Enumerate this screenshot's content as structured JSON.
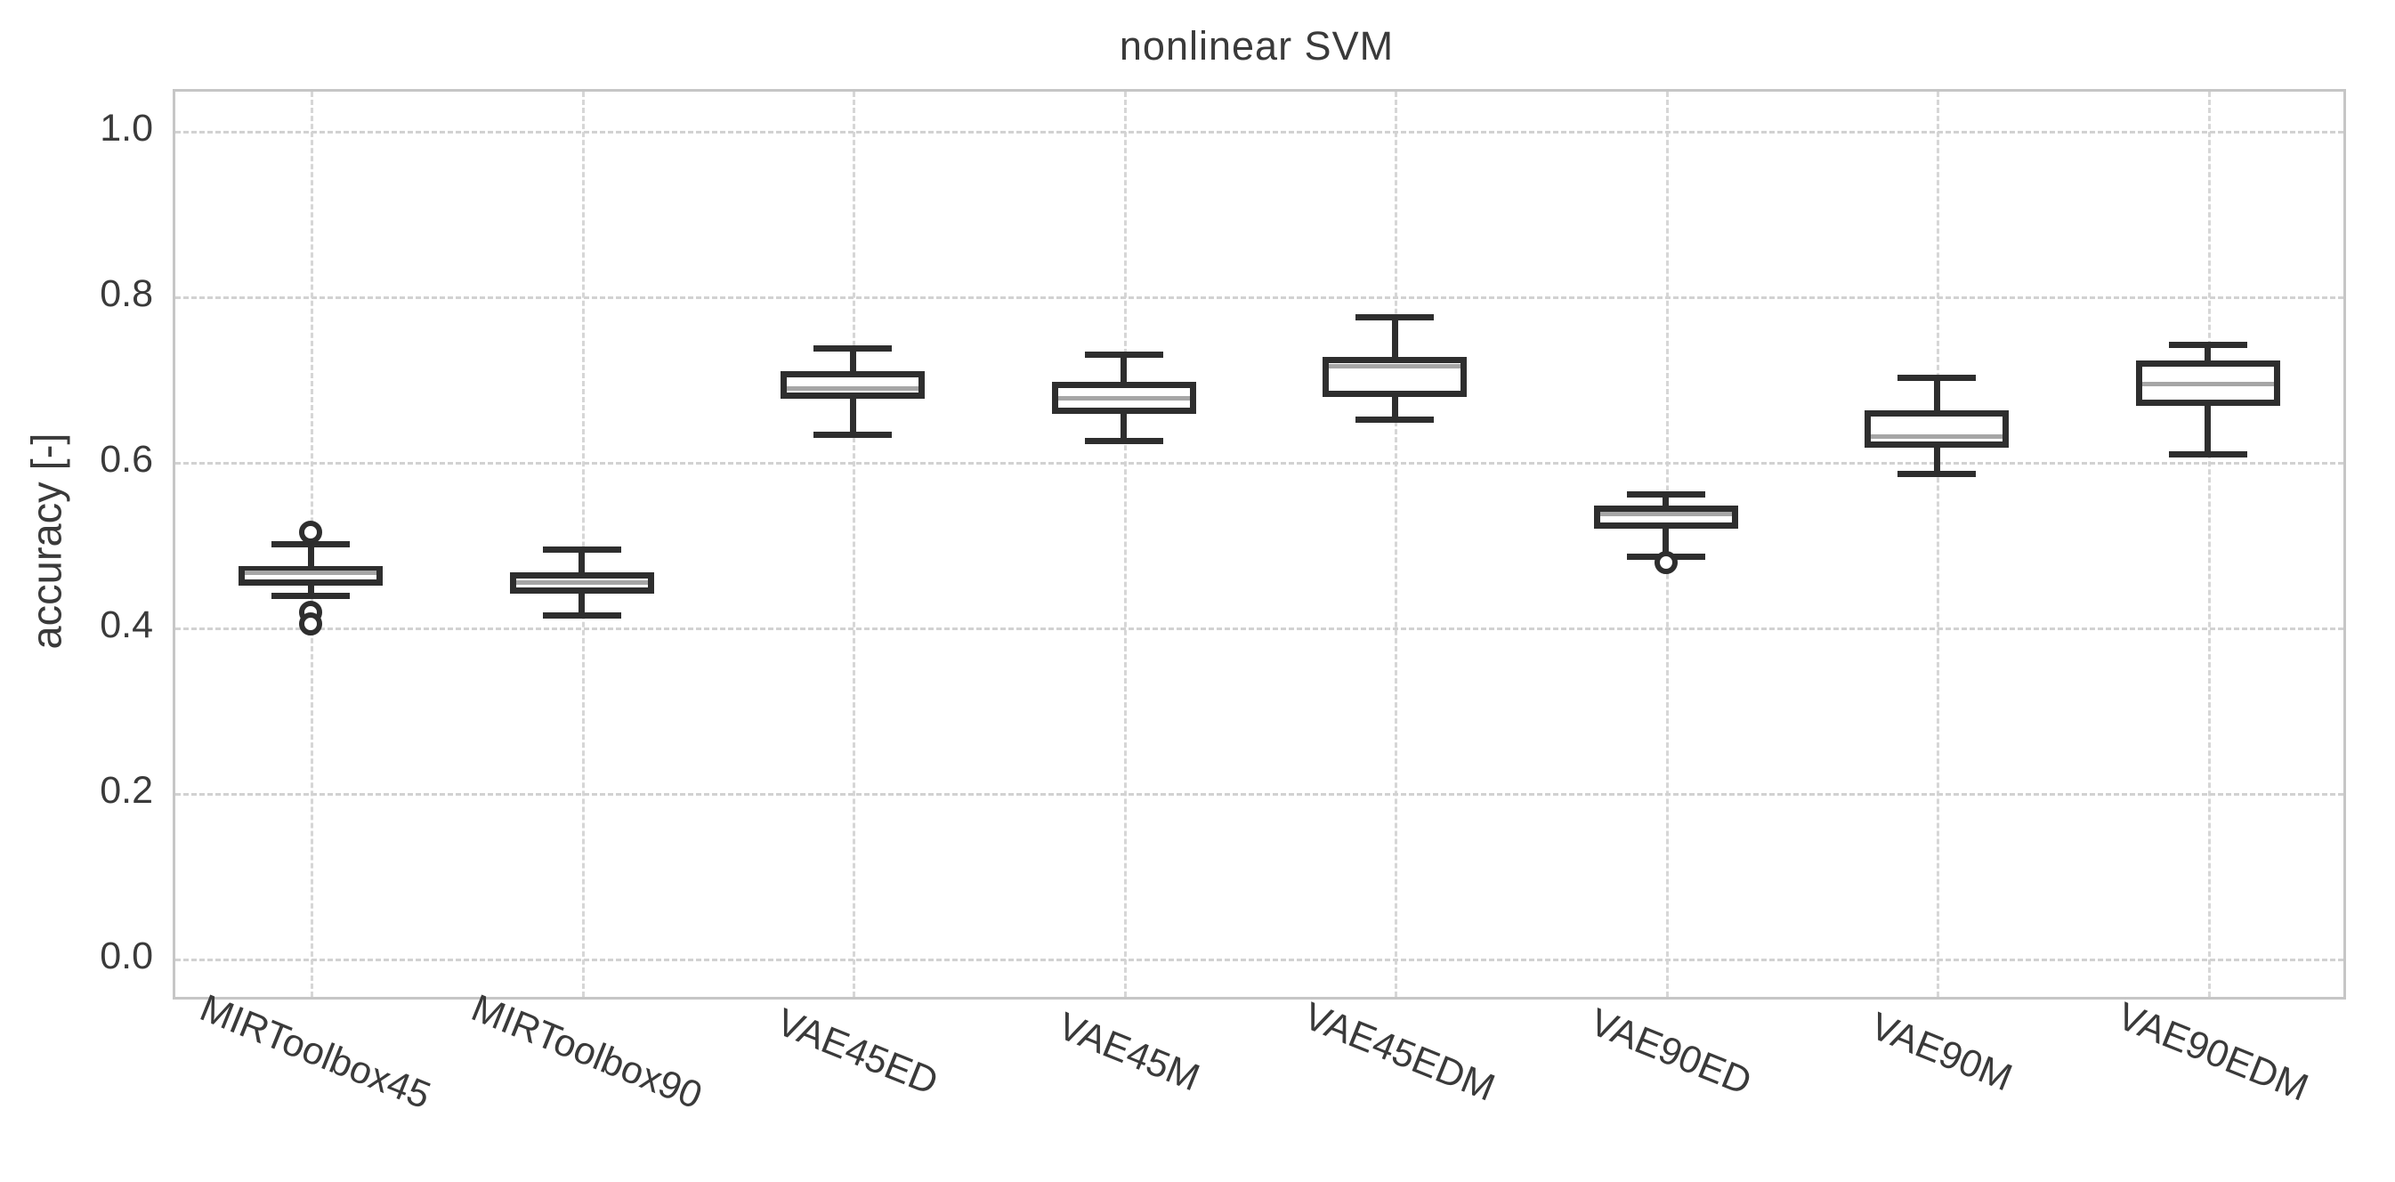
{
  "page": {
    "background": "#ffffff"
  },
  "colors": {
    "box_edge": "#2e2e2e",
    "median_line": "#a6a6a6",
    "grid_line": "#d2d2d2",
    "plot_border": "#c6c6c6",
    "text": "#3a3a3a"
  },
  "chart_data": {
    "type": "boxplot",
    "title": "nonlinear SVM",
    "xlabel": "",
    "ylabel": "accuracy [-]",
    "ylim": [
      -0.046,
      1.047
    ],
    "yticks": [
      0.0,
      0.2,
      0.4,
      0.6,
      0.8,
      1.0
    ],
    "ytick_labels": [
      "0.0",
      "0.2",
      "0.4",
      "0.6",
      "0.8",
      "1.0"
    ],
    "grid": true,
    "orientation": "vertical",
    "categories": [
      "MIRToolbox45",
      "MIRToolbox90",
      "VAE45ED",
      "VAE45M",
      "VAE45EDM",
      "VAE90ED",
      "VAE90M",
      "VAE90EDM"
    ],
    "boxes": [
      {
        "label": "MIRToolbox45",
        "whislo": 0.438,
        "q1": 0.451,
        "med": 0.466,
        "q3": 0.474,
        "whishi": 0.501,
        "fliers": [
          0.515,
          0.418,
          0.404
        ]
      },
      {
        "label": "MIRToolbox90",
        "whislo": 0.414,
        "q1": 0.441,
        "med": 0.454,
        "q3": 0.467,
        "whishi": 0.494,
        "fliers": []
      },
      {
        "label": "VAE45ED",
        "whislo": 0.633,
        "q1": 0.676,
        "med": 0.689,
        "q3": 0.71,
        "whishi": 0.737,
        "fliers": []
      },
      {
        "label": "VAE45M",
        "whislo": 0.625,
        "q1": 0.658,
        "med": 0.677,
        "q3": 0.697,
        "whishi": 0.73,
        "fliers": []
      },
      {
        "label": "VAE45EDM",
        "whislo": 0.651,
        "q1": 0.678,
        "med": 0.716,
        "q3": 0.727,
        "whishi": 0.775,
        "fliers": []
      },
      {
        "label": "VAE90ED",
        "whislo": 0.486,
        "q1": 0.519,
        "med": 0.537,
        "q3": 0.547,
        "whishi": 0.561,
        "fliers": [
          0.478
        ]
      },
      {
        "label": "VAE90M",
        "whislo": 0.586,
        "q1": 0.617,
        "med": 0.631,
        "q3": 0.662,
        "whishi": 0.702,
        "fliers": []
      },
      {
        "label": "VAE90EDM",
        "whislo": 0.609,
        "q1": 0.668,
        "med": 0.694,
        "q3": 0.723,
        "whishi": 0.741,
        "fliers": []
      }
    ]
  }
}
